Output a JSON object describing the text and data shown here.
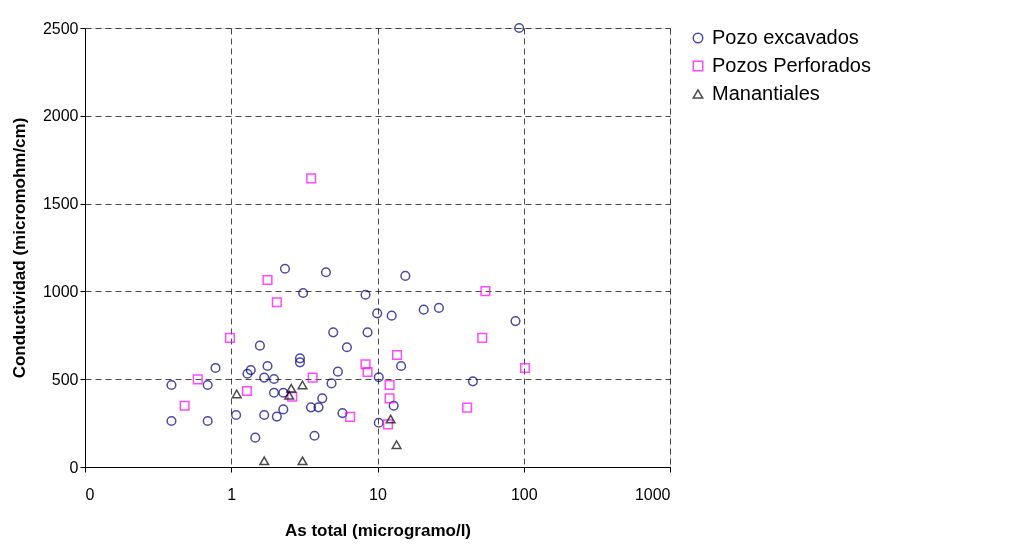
{
  "chart_data": {
    "type": "scatter",
    "xlabel": "As total   (microgramo/l)",
    "ylabel": "Conductividad (micromohm/cm)",
    "log": "x",
    "grid": true,
    "line_style": "dashed",
    "legend": "right",
    "xlim": [
      0.1,
      1000
    ],
    "xticks": [
      {
        "value": 0.1,
        "label": "0"
      },
      1,
      10,
      100,
      1000
    ],
    "ylim": [
      0,
      2500
    ],
    "yticks": [
      0,
      500,
      1000,
      1500,
      2000,
      2500
    ],
    "series": [
      {
        "name": "Pozo excavados",
        "color": "#000080",
        "marker": "circle",
        "x": [
          0.39,
          0.39,
          0.69,
          0.69,
          0.78,
          1.08,
          1.29,
          1.36,
          1.46,
          1.57,
          1.68,
          1.68,
          1.77,
          1.96,
          1.96,
          2.05,
          2.27,
          2.27,
          2.33,
          2.95,
          2.95,
          3.1,
          3.51,
          3.71,
          3.95,
          4.19,
          4.44,
          4.85,
          4.98,
          5.36,
          5.76,
          6.18,
          8.28,
          8.55,
          9.95,
          10.2,
          10.2,
          12.5,
          12.9,
          14.5,
          15.5,
          20.7,
          26.3,
          44.9,
          87.8,
          93
        ],
        "values": [
          467,
          262,
          467,
          262,
          564,
          296,
          531,
          552,
          167,
          691,
          509,
          296,
          575,
          501,
          423,
          287,
          423,
          328,
          1129,
          619,
          596,
          991,
          340,
          178,
          340,
          391,
          1109,
          476,
          767,
          543,
          307,
          682,
          981,
          767,
          875,
          511,
          252,
          862,
          349,
          575,
          1088,
          896,
          906,
          488,
          831,
          2500
        ]
      },
      {
        "name": "Pozos Perforados",
        "color": "#ff00ff",
        "marker": "square",
        "x": [
          0.48,
          0.59,
          0.98,
          1.28,
          1.77,
          2.05,
          2.61,
          3.52,
          3.6,
          6.5,
          8.28,
          8.55,
          11.8,
          12.1,
          12.1,
          13.6,
          41,
          52,
          54.7,
          102
        ],
        "values": [
          349,
          499,
          735,
          433,
          1065,
          938,
          400,
          1644,
          509,
          285,
          585,
          541,
          243,
          467,
          391,
          638,
          338,
          735,
          1002,
          564
        ]
      },
      {
        "name": "Manantiales",
        "color": "#000000",
        "marker": "triangle",
        "x": [
          1.09,
          1.68,
          2.49,
          2.57,
          3.07,
          3.07,
          12.3,
          13.5
        ],
        "values": [
          416,
          35,
          408,
          448,
          467,
          35,
          273,
          127
        ]
      }
    ]
  }
}
